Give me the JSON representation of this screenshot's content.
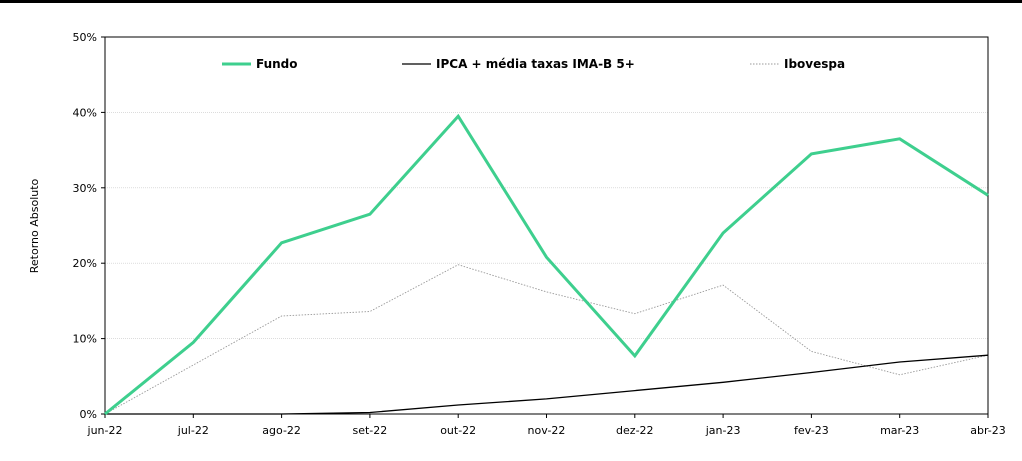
{
  "chart_data": {
    "type": "line",
    "title": "",
    "xlabel": "",
    "ylabel": "Retorno Absoluto",
    "categories": [
      "jun-22",
      "jul-22",
      "ago-22",
      "set-22",
      "out-22",
      "nov-22",
      "dez-22",
      "jan-23",
      "fev-23",
      "mar-23",
      "abr-23"
    ],
    "ylim": [
      0,
      50
    ],
    "yticks": [
      0,
      10,
      20,
      30,
      40,
      50
    ],
    "ytick_labels": [
      "0%",
      "10%",
      "20%",
      "30%",
      "40%",
      "50%"
    ],
    "grid": true,
    "legend_position": "top",
    "series": [
      {
        "name": "Fundo",
        "color": "#3ecf8e",
        "style": "solid-thick",
        "values": [
          0,
          9.5,
          22.7,
          26.5,
          39.5,
          20.8,
          7.7,
          24.0,
          34.5,
          36.5,
          29.0
        ]
      },
      {
        "name": "IPCA + média taxas IMA-B 5+",
        "color": "#000000",
        "style": "solid",
        "values": [
          0,
          0,
          0,
          0.2,
          1.2,
          2.0,
          3.1,
          4.2,
          5.5,
          6.9,
          7.8
        ]
      },
      {
        "name": "Ibovespa",
        "color": "#999999",
        "style": "dotted",
        "values": [
          0,
          6.5,
          13.0,
          13.6,
          19.8,
          16.2,
          13.3,
          17.1,
          8.3,
          5.2,
          7.8
        ]
      }
    ]
  }
}
